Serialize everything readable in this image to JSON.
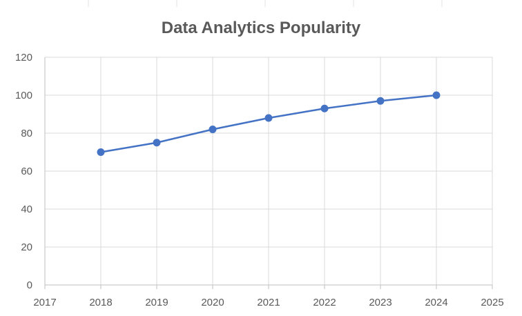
{
  "chart_data": {
    "type": "line",
    "title": "Data Analytics Popularity",
    "xlabel": "",
    "ylabel": "",
    "xlim": [
      2017,
      2025
    ],
    "ylim": [
      0,
      120
    ],
    "xticks": [
      2017,
      2018,
      2019,
      2020,
      2021,
      2022,
      2023,
      2024,
      2025
    ],
    "yticks": [
      0,
      20,
      40,
      60,
      80,
      100,
      120
    ],
    "grid": true,
    "legend": "none",
    "series": [
      {
        "color": "#4472C4",
        "x": [
          2018,
          2019,
          2020,
          2021,
          2022,
          2023,
          2024
        ],
        "y": [
          70,
          75,
          82,
          88,
          93,
          97,
          100
        ]
      }
    ]
  }
}
